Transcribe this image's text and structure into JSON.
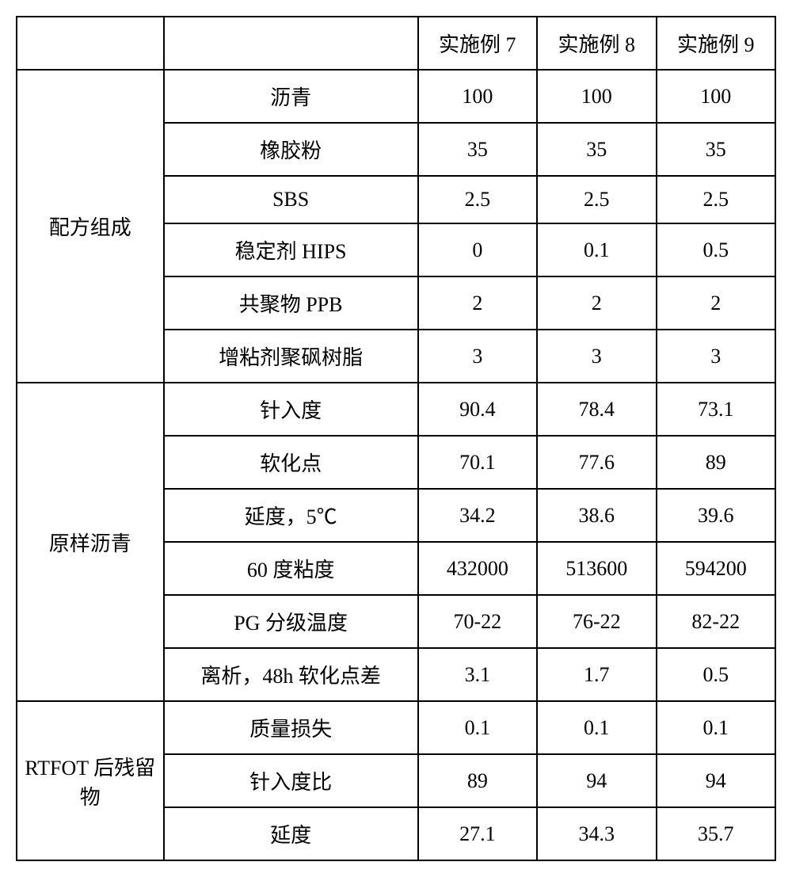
{
  "table": {
    "columns": {
      "group": "",
      "param": "",
      "c1": "实施例 7",
      "c2": "实施例 8",
      "c3": "实施例 9"
    },
    "groups": [
      {
        "label": "配方组成",
        "rows": [
          {
            "param": "沥青",
            "v1": "100",
            "v2": "100",
            "v3": "100"
          },
          {
            "param": "橡胶粉",
            "v1": "35",
            "v2": "35",
            "v3": "35"
          },
          {
            "param": "SBS",
            "v1": "2.5",
            "v2": "2.5",
            "v3": "2.5"
          },
          {
            "param": "稳定剂 HIPS",
            "v1": "0",
            "v2": "0.1",
            "v3": "0.5"
          },
          {
            "param": "共聚物 PPB",
            "v1": "2",
            "v2": "2",
            "v3": "2"
          },
          {
            "param": "增粘剂聚砜树脂",
            "v1": "3",
            "v2": "3",
            "v3": "3"
          }
        ]
      },
      {
        "label": "原样沥青",
        "rows": [
          {
            "param": "针入度",
            "v1": "90.4",
            "v2": "78.4",
            "v3": "73.1"
          },
          {
            "param": "软化点",
            "v1": "70.1",
            "v2": "77.6",
            "v3": "89"
          },
          {
            "param": "延度，5℃",
            "v1": "34.2",
            "v2": "38.6",
            "v3": "39.6"
          },
          {
            "param": "60 度粘度",
            "v1": "432000",
            "v2": "513600",
            "v3": "594200"
          },
          {
            "param": "PG 分级温度",
            "v1": "70-22",
            "v2": "76-22",
            "v3": "82-22"
          },
          {
            "param": "离析，48h 软化点差",
            "v1": "3.1",
            "v2": "1.7",
            "v3": "0.5"
          }
        ]
      },
      {
        "label": "RTFOT 后残留物",
        "rows": [
          {
            "param": "质量损失",
            "v1": "0.1",
            "v2": "0.1",
            "v3": "0.1"
          },
          {
            "param": "针入度比",
            "v1": "89",
            "v2": "94",
            "v3": "94"
          },
          {
            "param": "延度",
            "v1": "27.1",
            "v2": "34.3",
            "v3": "35.7"
          }
        ]
      }
    ],
    "colwidths": {
      "group": 185,
      "param": 320,
      "val": 150
    },
    "border_color": "#000000",
    "background_color": "#ffffff",
    "fontsize": 26
  }
}
